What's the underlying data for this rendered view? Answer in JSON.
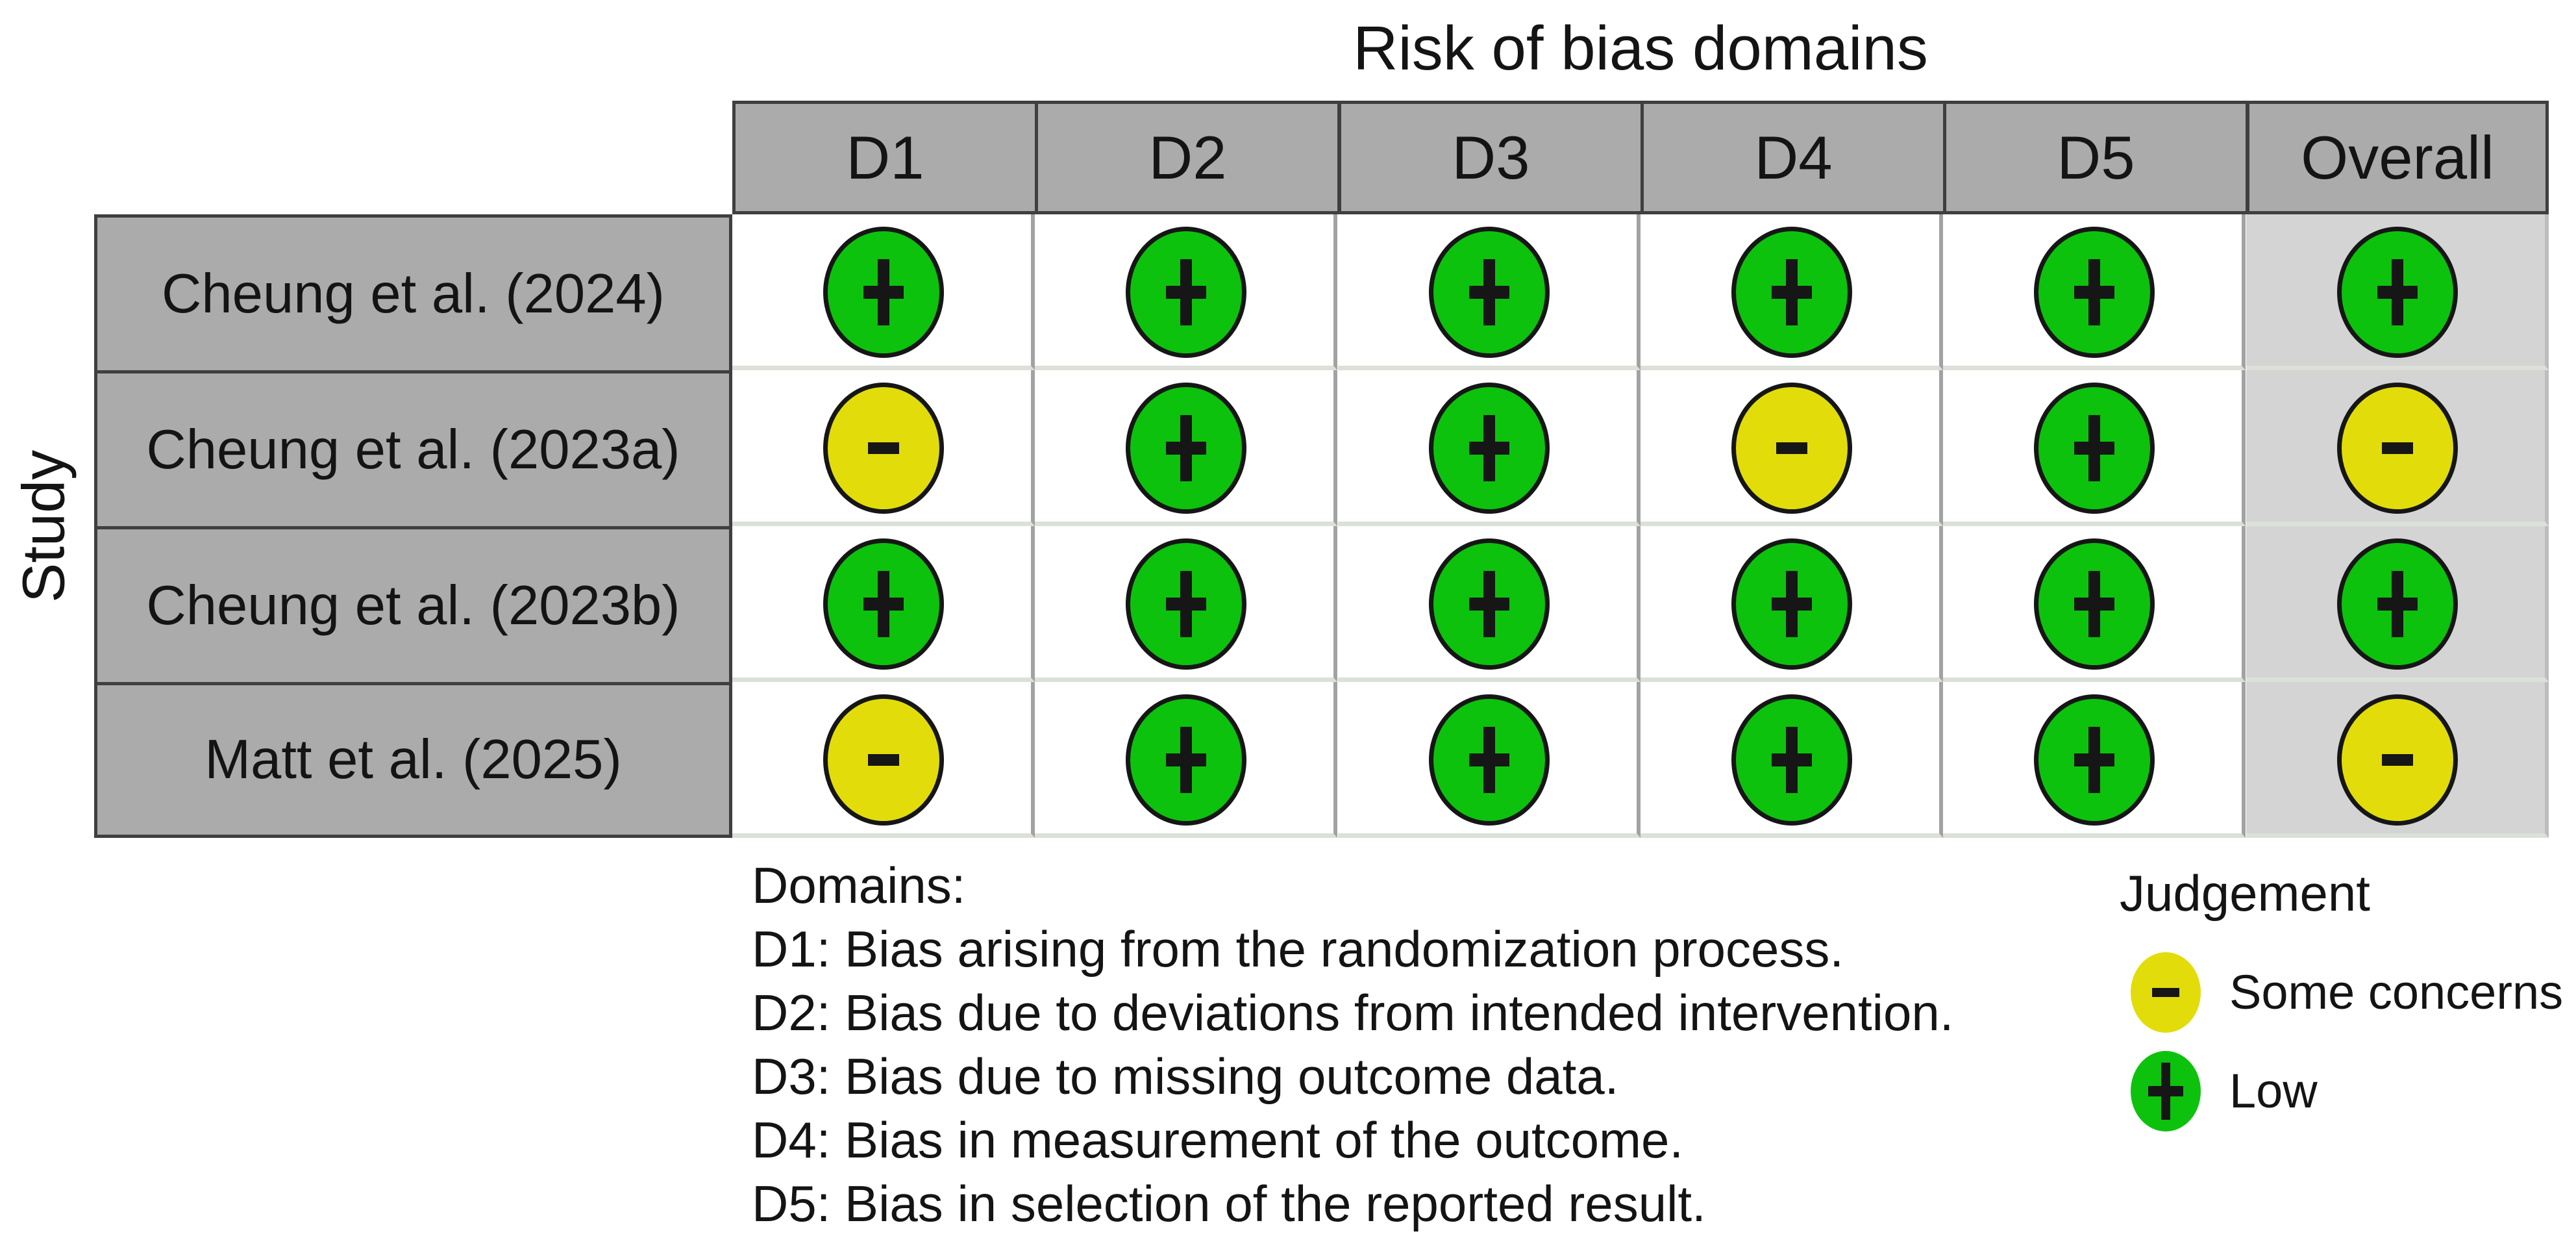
{
  "figure": {
    "title": "Risk of bias domains",
    "y_axis_label": "Study"
  },
  "table": {
    "columns": [
      "D1",
      "D2",
      "D3",
      "D4",
      "D5",
      "Overall"
    ],
    "rows": [
      {
        "study": "Cheung et al. (2024)",
        "judgements": [
          "low",
          "low",
          "low",
          "low",
          "low",
          "low"
        ]
      },
      {
        "study": "Cheung et al. (2023a)",
        "judgements": [
          "some_concerns",
          "low",
          "low",
          "some_concerns",
          "low",
          "some_concerns"
        ]
      },
      {
        "study": "Cheung et al. (2023b)",
        "judgements": [
          "low",
          "low",
          "low",
          "low",
          "low",
          "low"
        ]
      },
      {
        "study": "Matt et al. (2025)",
        "judgements": [
          "some_concerns",
          "low",
          "low",
          "low",
          "low",
          "some_concerns"
        ]
      }
    ]
  },
  "judgement_styles": {
    "low": {
      "symbol": "+",
      "color": "#0cc20c",
      "label": "Low"
    },
    "some_concerns": {
      "symbol": "-",
      "color": "#e2dd0a",
      "label": "Some concerns"
    }
  },
  "legend": {
    "title": "Judgement",
    "items": [
      {
        "key": "some_concerns",
        "label": "Some concerns"
      },
      {
        "key": "low",
        "label": "Low"
      }
    ]
  },
  "domains_note": {
    "heading": "Domains:",
    "lines": [
      "D1: Bias arising from the randomization process.",
      "D2: Bias due to deviations from intended intervention.",
      "D3: Bias due to missing outcome data.",
      "D4: Bias in measurement of the outcome.",
      "D5: Bias in selection of the reported result."
    ]
  },
  "colors": {
    "header_fill": "#ababab",
    "study_fill": "#ababab",
    "overall_column_fill": "#d4d4d4",
    "cell_fill": "#ffffff",
    "dark_border": "#3f3f3f",
    "column_separator": "#a2a2a2",
    "row_separator": "#dbe0d8",
    "circle_outline": "#161616",
    "low_green": "#0cc20c",
    "some_concerns_yellow": "#e2dd0a"
  },
  "chart_data": {
    "type": "table",
    "title": "Risk of bias domains",
    "xlabel": "Risk of bias domains",
    "ylabel": "Study",
    "x_categories": [
      "D1",
      "D2",
      "D3",
      "D4",
      "D5",
      "Overall"
    ],
    "y_categories": [
      "Cheung et al. (2024)",
      "Cheung et al. (2023a)",
      "Cheung et al. (2023b)",
      "Matt et al. (2025)"
    ],
    "values": [
      [
        "Low",
        "Low",
        "Low",
        "Low",
        "Low",
        "Low"
      ],
      [
        "Some concerns",
        "Low",
        "Low",
        "Some concerns",
        "Low",
        "Some concerns"
      ],
      [
        "Low",
        "Low",
        "Low",
        "Low",
        "Low",
        "Low"
      ],
      [
        "Some concerns",
        "Low",
        "Low",
        "Low",
        "Low",
        "Some concerns"
      ]
    ],
    "legend_entries": [
      {
        "label": "Some concerns",
        "marker": "yellow circle with minus"
      },
      {
        "label": "Low",
        "marker": "green circle with plus"
      }
    ],
    "legend_position": "bottom-right",
    "grid": true
  }
}
